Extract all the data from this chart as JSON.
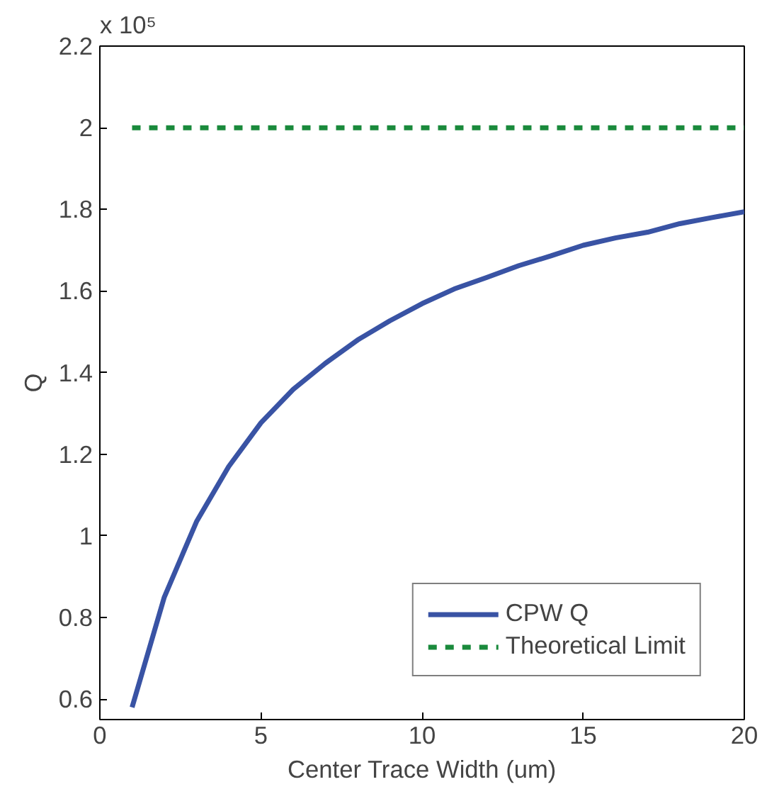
{
  "chart_data": {
    "type": "line",
    "xlabel": "Center Trace Width (um)",
    "ylabel": "Q",
    "annotations": [
      "x 10⁵"
    ],
    "xlim": [
      0,
      20
    ],
    "xticks": [
      0,
      5,
      10,
      15,
      20
    ],
    "ylim": [
      0.55,
      2.2
    ],
    "yticks": [
      0.6,
      0.8,
      1,
      1.2,
      1.4,
      1.6,
      1.8,
      2,
      2.2
    ],
    "grid": false,
    "legend": "bottom right",
    "marker": "none",
    "series": [
      {
        "name": "CPW Q",
        "color": "#3953a4",
        "line_style": "solid",
        "x": [
          1,
          2,
          3,
          4,
          5,
          6,
          7,
          8,
          9,
          10,
          11,
          12,
          13,
          14,
          15,
          16,
          17,
          18,
          19,
          20
        ],
        "values": [
          0.58,
          0.85,
          1.035,
          1.17,
          1.277,
          1.359,
          1.423,
          1.48,
          1.527,
          1.569,
          1.605,
          1.633,
          1.662,
          1.686,
          1.712,
          1.73,
          1.744,
          1.765,
          1.78,
          1.794
        ]
      },
      {
        "name": "Theoretical Limit",
        "color": "#1a8a3c",
        "line_style": "dashed",
        "x": [
          1,
          20
        ],
        "values": [
          2,
          2
        ]
      }
    ]
  }
}
